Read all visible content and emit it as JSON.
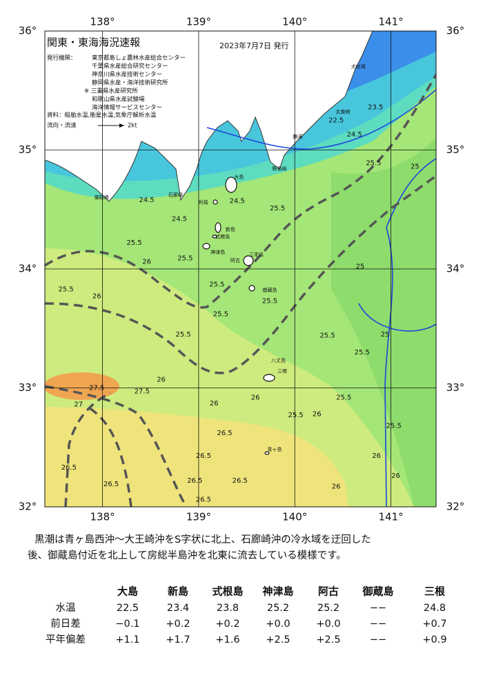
{
  "map": {
    "title": "関東・東海海況速報",
    "date": "2023年7月7日 発行",
    "issuers_label": "発行機関：",
    "issuers": [
      "東京都島しょ農林水産総合センター",
      "千葉県水産総合研究センター",
      "神奈川県水産技術センター",
      "静岡県水産・海洋技術研究所",
      "※ 三重県水産研究所",
      "和歌山県水産試験場",
      "海洋情報サービスセンター"
    ],
    "sources": "資料：船舶水温,衛星水温,気象庁解析水温",
    "legend_label": "流向・流速",
    "legend_speed": "2kt",
    "lonlim": [
      137.4,
      141.47
    ],
    "latlim": [
      32,
      36
    ],
    "lon_ticks": [
      {
        "value": 138,
        "label": "138°"
      },
      {
        "value": 139,
        "label": "139°"
      },
      {
        "value": 140,
        "label": "140°"
      },
      {
        "value": 141,
        "label": "141°"
      }
    ],
    "lat_ticks": [
      {
        "value": 36,
        "label": "36°"
      },
      {
        "value": 35,
        "label": "35°"
      },
      {
        "value": 34,
        "label": "34°"
      },
      {
        "value": 33,
        "label": "33°"
      },
      {
        "value": 32,
        "label": "32°"
      }
    ],
    "places": [
      {
        "name": "大島",
        "lon": 139.42,
        "lat": 34.77
      },
      {
        "name": "利島",
        "lon": 139.05,
        "lat": 34.56
      },
      {
        "name": "新島",
        "lon": 139.33,
        "lat": 34.33
      },
      {
        "name": "式根島",
        "lon": 139.25,
        "lat": 34.27
      },
      {
        "name": "神津島",
        "lon": 139.2,
        "lat": 34.14
      },
      {
        "name": "三宅島",
        "lon": 139.6,
        "lat": 34.12
      },
      {
        "name": "阿古",
        "lon": 139.38,
        "lat": 34.07
      },
      {
        "name": "御蔵島",
        "lon": 139.74,
        "lat": 33.82
      },
      {
        "name": "八丈島",
        "lon": 139.83,
        "lat": 33.23
      },
      {
        "name": "三根",
        "lon": 139.87,
        "lat": 33.14
      },
      {
        "name": "青ヶ島",
        "lon": 139.79,
        "lat": 32.48
      },
      {
        "name": "野島崎",
        "lon": 139.84,
        "lat": 34.84
      },
      {
        "name": "勝浦",
        "lon": 140.03,
        "lat": 35.11
      },
      {
        "name": "太東崎",
        "lon": 140.5,
        "lat": 35.32
      },
      {
        "name": "犬吠埼",
        "lon": 140.66,
        "lat": 35.7
      },
      {
        "name": "石廊崎",
        "lon": 138.76,
        "lat": 34.62
      },
      {
        "name": "御前崎",
        "lon": 137.99,
        "lat": 34.6
      }
    ],
    "isotherm_labels": [
      {
        "value": 24.5,
        "lon": 138.46,
        "lat": 34.58
      },
      {
        "value": 24.5,
        "lon": 138.8,
        "lat": 34.42
      },
      {
        "value": 25.5,
        "lon": 138.33,
        "lat": 34.22
      },
      {
        "value": 26,
        "lon": 138.46,
        "lat": 34.06
      },
      {
        "value": 25.5,
        "lon": 138.86,
        "lat": 34.09
      },
      {
        "value": 25.5,
        "lon": 137.62,
        "lat": 33.83
      },
      {
        "value": 26,
        "lon": 137.94,
        "lat": 33.77
      },
      {
        "value": 25.5,
        "lon": 139.19,
        "lat": 33.87
      },
      {
        "value": 25.5,
        "lon": 139.23,
        "lat": 33.62
      },
      {
        "value": 25.5,
        "lon": 139.74,
        "lat": 33.73
      },
      {
        "value": 25.5,
        "lon": 138.84,
        "lat": 33.45
      },
      {
        "value": 26,
        "lon": 138.61,
        "lat": 33.07
      },
      {
        "value": 27.5,
        "lon": 137.94,
        "lat": 33.0
      },
      {
        "value": 27,
        "lon": 137.75,
        "lat": 32.86
      },
      {
        "value": 27.5,
        "lon": 138.41,
        "lat": 32.97
      },
      {
        "value": 26,
        "lon": 139.16,
        "lat": 32.87
      },
      {
        "value": 26,
        "lon": 139.59,
        "lat": 32.92
      },
      {
        "value": 25.5,
        "lon": 140.01,
        "lat": 32.77
      },
      {
        "value": 26,
        "lon": 140.23,
        "lat": 32.78
      },
      {
        "value": 25.5,
        "lon": 140.51,
        "lat": 32.92
      },
      {
        "value": 25.5,
        "lon": 140.34,
        "lat": 33.44
      },
      {
        "value": 25.5,
        "lon": 140.7,
        "lat": 33.3
      },
      {
        "value": 25.5,
        "lon": 141.03,
        "lat": 32.68
      },
      {
        "value": 26,
        "lon": 140.85,
        "lat": 32.43
      },
      {
        "value": 26,
        "lon": 141.05,
        "lat": 32.26
      },
      {
        "value": 26.5,
        "lon": 139.27,
        "lat": 32.62
      },
      {
        "value": 26.5,
        "lon": 139.05,
        "lat": 32.43
      },
      {
        "value": 26.5,
        "lon": 139.43,
        "lat": 32.22
      },
      {
        "value": 26.5,
        "lon": 138.96,
        "lat": 32.22
      },
      {
        "value": 26.5,
        "lon": 138.09,
        "lat": 32.19
      },
      {
        "value": 26.5,
        "lon": 137.65,
        "lat": 32.33
      },
      {
        "value": 26.5,
        "lon": 139.05,
        "lat": 32.06
      },
      {
        "value": 26,
        "lon": 140.43,
        "lat": 32.17
      },
      {
        "value": 25.5,
        "lon": 140.82,
        "lat": 34.89
      },
      {
        "value": 25,
        "lon": 141.25,
        "lat": 34.86
      },
      {
        "value": 24.5,
        "lon": 140.62,
        "lat": 35.13
      },
      {
        "value": 23.5,
        "lon": 140.84,
        "lat": 35.36
      },
      {
        "value": 22.5,
        "lon": 140.43,
        "lat": 35.25
      },
      {
        "value": 25.5,
        "lon": 139.82,
        "lat": 34.51
      },
      {
        "value": 24.5,
        "lon": 139.4,
        "lat": 34.57
      },
      {
        "value": 25,
        "lon": 140.68,
        "lat": 34.02
      },
      {
        "value": 25,
        "lon": 140.94,
        "lat": 33.45
      }
    ]
  },
  "summary": [
    "黒潮は青ヶ島西沖～大王崎沖をS字状に北上、石廊崎沖の冷水域を迂回した",
    "後、御蔵島付近を北上して房総半島沖を北東に流去している模様です。"
  ],
  "table": {
    "header": [
      "大島",
      "新島",
      "式根島",
      "神津島",
      "阿古",
      "御蔵島",
      "三根"
    ],
    "rows": [
      [
        "水温",
        "22.5",
        "23.4",
        "23.8",
        "25.2",
        "25.2",
        "−−",
        "24.8"
      ],
      [
        "前日差",
        "−0.1",
        "+0.2",
        "+0.2",
        "+0.0",
        "+0.0",
        "−−",
        "+0.7"
      ],
      [
        "平年偏差",
        "+1.1",
        "+1.7",
        "+1.6",
        "+2.5",
        "+2.5",
        "−−",
        "+0.9"
      ]
    ]
  }
}
